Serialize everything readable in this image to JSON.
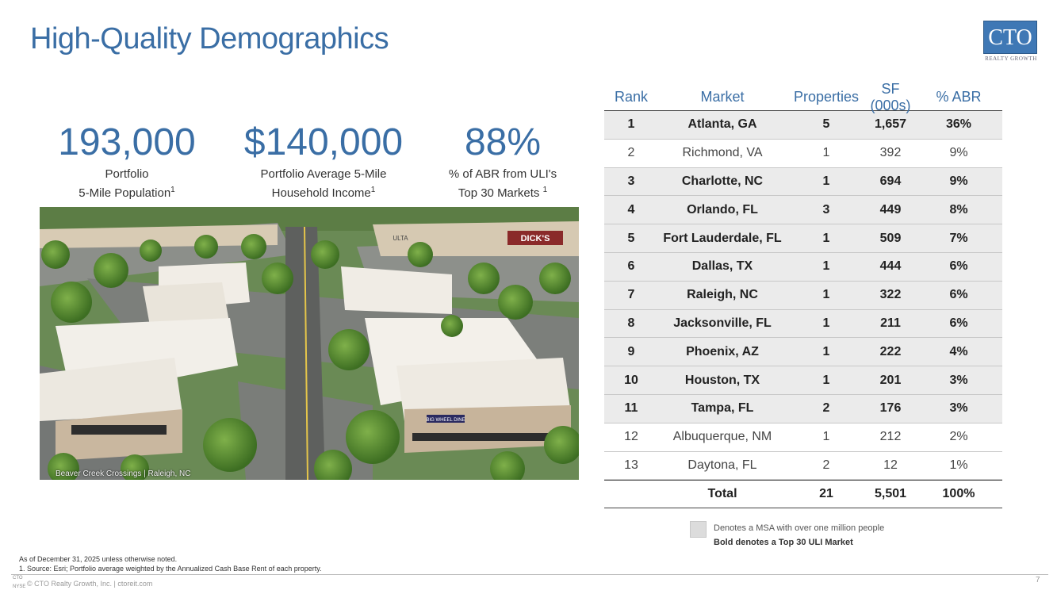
{
  "title": "High-Quality Demographics",
  "logo": {
    "main": "CTO",
    "sub": "REALTY GROWTH"
  },
  "stats": [
    {
      "value": "193,000",
      "label_line1": "Portfolio",
      "label_line2": "5-Mile Population",
      "sup": "1"
    },
    {
      "value": "$140,000",
      "label_line1": "Portfolio Average 5-Mile",
      "label_line2": "Household Income",
      "sup": "1"
    },
    {
      "value": "88%",
      "label_line1": "% of ABR from ULI's",
      "label_line2": "Top 30 Markets ",
      "sup": "1"
    }
  ],
  "photo": {
    "caption": "Beaver Creek Crossings | Raleigh, NC",
    "storefront_1": "DICK'S",
    "storefront_2": "ULTA",
    "storefront_3": "BIG WHEEL DINE"
  },
  "table": {
    "headers": [
      "Rank",
      "Market",
      "Properties",
      "SF (000s)",
      "% ABR"
    ],
    "rows": [
      {
        "rank": "1",
        "market": "Atlanta, GA",
        "properties": "5",
        "sf": "1,657",
        "abr": "36%",
        "shaded": true,
        "bold": true
      },
      {
        "rank": "2",
        "market": "Richmond, VA",
        "properties": "1",
        "sf": "392",
        "abr": "9%",
        "shaded": false,
        "bold": false
      },
      {
        "rank": "3",
        "market": "Charlotte, NC",
        "properties": "1",
        "sf": "694",
        "abr": "9%",
        "shaded": true,
        "bold": true
      },
      {
        "rank": "4",
        "market": "Orlando, FL",
        "properties": "3",
        "sf": "449",
        "abr": "8%",
        "shaded": true,
        "bold": true
      },
      {
        "rank": "5",
        "market": "Fort Lauderdale, FL",
        "properties": "1",
        "sf": "509",
        "abr": "7%",
        "shaded": true,
        "bold": true
      },
      {
        "rank": "6",
        "market": "Dallas, TX",
        "properties": "1",
        "sf": "444",
        "abr": "6%",
        "shaded": true,
        "bold": true
      },
      {
        "rank": "7",
        "market": "Raleigh, NC",
        "properties": "1",
        "sf": "322",
        "abr": "6%",
        "shaded": true,
        "bold": true
      },
      {
        "rank": "8",
        "market": "Jacksonville, FL",
        "properties": "1",
        "sf": "211",
        "abr": "6%",
        "shaded": true,
        "bold": true
      },
      {
        "rank": "9",
        "market": "Phoenix, AZ",
        "properties": "1",
        "sf": "222",
        "abr": "4%",
        "shaded": true,
        "bold": true
      },
      {
        "rank": "10",
        "market": "Houston, TX",
        "properties": "1",
        "sf": "201",
        "abr": "3%",
        "shaded": true,
        "bold": true
      },
      {
        "rank": "11",
        "market": "Tampa, FL",
        "properties": "2",
        "sf": "176",
        "abr": "3%",
        "shaded": true,
        "bold": true
      },
      {
        "rank": "12",
        "market": "Albuquerque, NM",
        "properties": "1",
        "sf": "212",
        "abr": "2%",
        "shaded": false,
        "bold": false
      },
      {
        "rank": "13",
        "market": "Daytona, FL",
        "properties": "2",
        "sf": "12",
        "abr": "1%",
        "shaded": false,
        "bold": false
      }
    ],
    "total": {
      "label": "Total",
      "properties": "21",
      "sf": "5,501",
      "abr": "100%"
    }
  },
  "legend": {
    "line1": "Denotes a MSA with over one million people",
    "line2": "Bold denotes a Top 30 ULI Market"
  },
  "footnotes": {
    "line1": "As of December 31, 2025 unless otherwise noted.",
    "line2": "1.     Source: Esri; Portfolio average weighted by the Annualized Cash Base Rent of each property."
  },
  "footer": {
    "logo_top": "CTO",
    "logo_bottom": "NYSE",
    "text": "© CTO Realty Growth, Inc. | ctoreit.com",
    "page": "7"
  }
}
